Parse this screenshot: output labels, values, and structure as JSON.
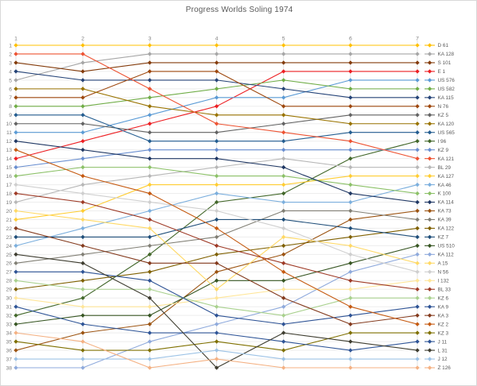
{
  "title": "Progress Worlds Soling 1974",
  "colors": {
    "background": "#ffffff",
    "border": "#d9d9d9",
    "title_text": "#595959",
    "axis_text": "#7f7f7f",
    "legend_text": "#595959",
    "row_gridline": "#ededed",
    "column_gridline": "#e2e2e2"
  },
  "chart_data": {
    "type": "line",
    "subtype": "bump-rank-progression",
    "title": "Progress Worlds Soling 1974",
    "xlabel": "",
    "ylabel": "",
    "grid": true,
    "legend_position": "right",
    "x": [
      1,
      2,
      3,
      4,
      5,
      6,
      7
    ],
    "race_tick_labels": [
      "1",
      "2",
      "3",
      "4",
      "5",
      "6",
      "7"
    ],
    "rank_tick_labels": [
      "1",
      "2",
      "3",
      "4",
      "5",
      "6",
      "7",
      "8",
      "9",
      "10",
      "11",
      "12",
      "13",
      "14",
      "15",
      "16",
      "17",
      "18",
      "19",
      "20",
      "21",
      "22",
      "23",
      "24",
      "25",
      "26",
      "27",
      "28",
      "29",
      "30",
      "31",
      "32",
      "33",
      "34",
      "35",
      "36",
      "37",
      "38"
    ],
    "ylim": [
      1,
      38
    ],
    "y_inverted": true,
    "series": [
      {
        "name": "D 61",
        "color": "#FFC000",
        "ranks": [
          1,
          1,
          1,
          1,
          1,
          1,
          1
        ]
      },
      {
        "name": "KA 128",
        "color": "#A6A6A6",
        "ranks": [
          5,
          3,
          2,
          2,
          2,
          2,
          2
        ]
      },
      {
        "name": "S 101",
        "color": "#843C0C",
        "ranks": [
          3,
          4,
          3,
          3,
          3,
          3,
          3
        ]
      },
      {
        "name": "E 1",
        "color": "#ED2024",
        "ranks": [
          14,
          12,
          10,
          8,
          4,
          4,
          4
        ]
      },
      {
        "name": "US 576",
        "color": "#5B9BD5",
        "ranks": [
          11,
          11,
          9,
          7,
          7,
          5,
          5
        ]
      },
      {
        "name": "US 582",
        "color": "#70AD47",
        "ranks": [
          8,
          8,
          7,
          6,
          5,
          6,
          6
        ]
      },
      {
        "name": "KA 115",
        "color": "#264478",
        "ranks": [
          4,
          5,
          5,
          5,
          6,
          7,
          7
        ]
      },
      {
        "name": "N 76",
        "color": "#9E480E",
        "ranks": [
          7,
          7,
          4,
          4,
          8,
          8,
          8
        ]
      },
      {
        "name": "KZ 5",
        "color": "#636363",
        "ranks": [
          10,
          10,
          11,
          11,
          10,
          9,
          9
        ]
      },
      {
        "name": "KA 120",
        "color": "#997300",
        "ranks": [
          6,
          6,
          8,
          9,
          9,
          10,
          10
        ]
      },
      {
        "name": "US 565",
        "color": "#255E91",
        "ranks": [
          9,
          9,
          12,
          12,
          12,
          11,
          11
        ]
      },
      {
        "name": "I 96",
        "color": "#43682B",
        "ranks": [
          32,
          30,
          25,
          19,
          18,
          14,
          12
        ]
      },
      {
        "name": "KZ 9",
        "color": "#698ED0",
        "ranks": [
          15,
          14,
          13,
          13,
          13,
          13,
          13
        ]
      },
      {
        "name": "KA 121",
        "color": "#ED5333",
        "ranks": [
          2,
          2,
          6,
          10,
          11,
          12,
          14
        ]
      },
      {
        "name": "BL 29",
        "color": "#B7B7B7",
        "ranks": [
          19,
          17,
          16,
          15,
          14,
          15,
          15
        ]
      },
      {
        "name": "KA 127",
        "color": "#FFCD33",
        "ranks": [
          21,
          20,
          17,
          17,
          17,
          16,
          16
        ]
      },
      {
        "name": "KA 46",
        "color": "#7CAFDD",
        "ranks": [
          24,
          22,
          20,
          18,
          19,
          19,
          17
        ]
      },
      {
        "name": "K 100",
        "color": "#8CC168",
        "ranks": [
          16,
          15,
          15,
          16,
          16,
          17,
          18
        ]
      },
      {
        "name": "KA 114",
        "color": "#203864",
        "ranks": [
          12,
          13,
          14,
          14,
          15,
          18,
          19
        ]
      },
      {
        "name": "KA 73",
        "color": "#9C5412",
        "ranks": [
          36,
          34,
          33,
          27,
          25,
          21,
          20
        ]
      },
      {
        "name": "KA 39",
        "color": "#817F75",
        "ranks": [
          26,
          25,
          24,
          23,
          20,
          20,
          21
        ]
      },
      {
        "name": "KA 122",
        "color": "#7F6000",
        "ranks": [
          29,
          28,
          27,
          25,
          24,
          23,
          22
        ]
      },
      {
        "name": "KZ 7",
        "color": "#1F4E79",
        "ranks": [
          23,
          23,
          23,
          21,
          21,
          22,
          23
        ]
      },
      {
        "name": "US 510",
        "color": "#375623",
        "ranks": [
          33,
          32,
          32,
          28,
          28,
          26,
          24
        ]
      },
      {
        "name": "KA 112",
        "color": "#8FAADC",
        "ranks": [
          38,
          38,
          35,
          33,
          31,
          27,
          25
        ]
      },
      {
        "name": "A 15",
        "color": "#FFD965",
        "ranks": [
          20,
          21,
          22,
          29,
          23,
          24,
          26
        ]
      },
      {
        "name": "N 56",
        "color": "#CFCFCF",
        "ranks": [
          17,
          18,
          19,
          20,
          22,
          25,
          27
        ]
      },
      {
        "name": "I 132",
        "color": "#FFE699",
        "ranks": [
          30,
          31,
          31,
          30,
          29,
          29,
          28
        ]
      },
      {
        "name": "BL 33",
        "color": "#9E3A26",
        "ranks": [
          18,
          19,
          21,
          24,
          26,
          28,
          29
        ]
      },
      {
        "name": "KZ 6",
        "color": "#A9D18E",
        "ranks": [
          28,
          29,
          29,
          31,
          32,
          30,
          30
        ]
      },
      {
        "name": "KA 9",
        "color": "#2E5395",
        "ranks": [
          27,
          27,
          28,
          32,
          33,
          32,
          31
        ]
      },
      {
        "name": "KA 3",
        "color": "#843B1E",
        "ranks": [
          22,
          24,
          26,
          26,
          30,
          33,
          32
        ]
      },
      {
        "name": "KZ 2",
        "color": "#C55A11",
        "ranks": [
          13,
          16,
          18,
          22,
          27,
          31,
          33
        ]
      },
      {
        "name": "KZ 3",
        "color": "#7F7000",
        "ranks": [
          35,
          36,
          36,
          35,
          36,
          34,
          34
        ]
      },
      {
        "name": "J 11",
        "color": "#2F5597",
        "ranks": [
          31,
          33,
          34,
          34,
          35,
          36,
          35
        ]
      },
      {
        "name": "L 31",
        "color": "#3E3D30",
        "ranks": [
          25,
          26,
          30,
          38,
          34,
          35,
          36
        ]
      },
      {
        "name": "J 12",
        "color": "#9DC3E6",
        "ranks": [
          37,
          37,
          37,
          36,
          37,
          37,
          37
        ]
      },
      {
        "name": "Z 126",
        "color": "#F4B183",
        "ranks": [
          34,
          35,
          38,
          37,
          38,
          38,
          38
        ]
      }
    ]
  }
}
